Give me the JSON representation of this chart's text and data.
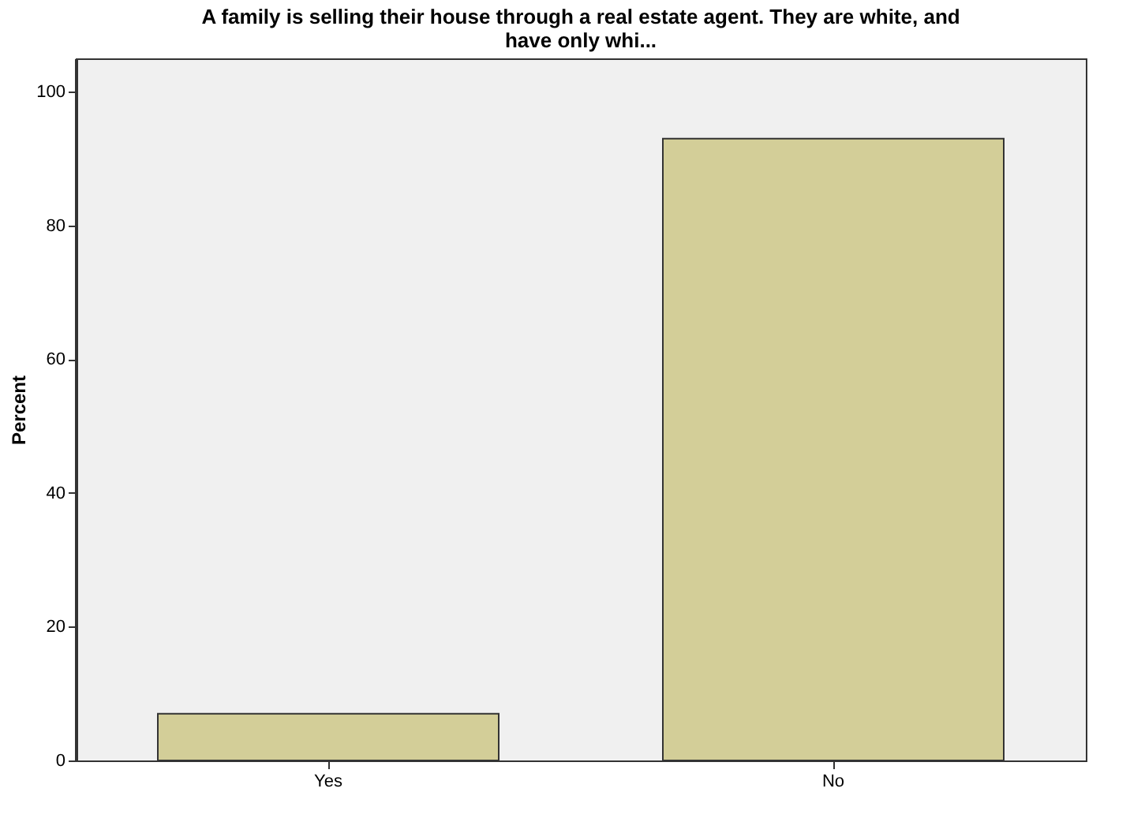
{
  "chart_data": {
    "type": "bar",
    "title": "A family is selling their house through a real estate agent. They are white, and have only whi...",
    "ylabel": "Percent",
    "categories": [
      "Yes",
      "No"
    ],
    "values": [
      7,
      93
    ],
    "color": "#d3ce98",
    "ylim": [
      0,
      105
    ],
    "yticks": [
      0,
      20,
      40,
      60,
      80,
      100
    ],
    "grid": false
  }
}
